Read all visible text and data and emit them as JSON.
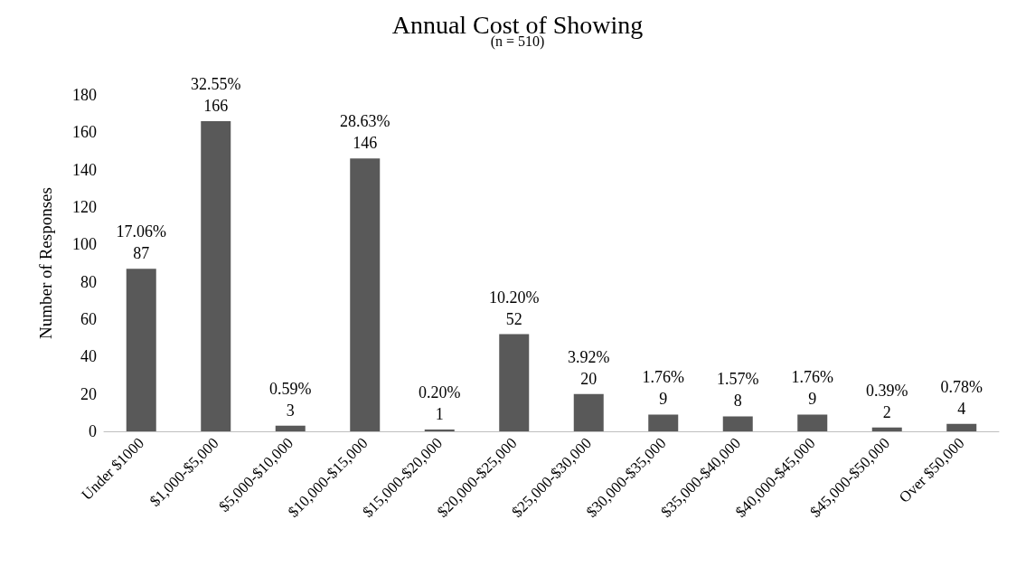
{
  "chart_data": {
    "type": "bar",
    "title": "Annual Cost of Showing",
    "subtitle": "(n = 510)",
    "ylabel": "Number of Responses",
    "categories": [
      "Under $1000",
      "$1,000-$5,000",
      "$5,000-$10,000",
      "$10,000-$15,000",
      "$15,000-$20,000",
      "$20,000-$25,000",
      "$25,000-$30,000",
      "$30,000-$35,000",
      "$35,000-$40,000",
      "$40,000-$45,000",
      "$45,000-$50,000",
      "Over $50,000"
    ],
    "values": [
      87,
      166,
      3,
      146,
      1,
      52,
      20,
      9,
      8,
      9,
      2,
      4
    ],
    "value_labels": [
      "17.06%\n87",
      "32.55%\n166",
      "0.59%\n3",
      "28.63%\n146",
      "0.20%\n1",
      "10.20%\n52",
      "3.92%\n20",
      "1.76%\n9",
      "1.57%\n8",
      "1.76%\n9",
      "0.39%\n2",
      "0.78%\n4"
    ],
    "color": "#595959",
    "ylim": [
      0,
      180
    ],
    "yticks": [
      0,
      20,
      40,
      60,
      80,
      100,
      120,
      140,
      160,
      180
    ],
    "grid": false
  }
}
